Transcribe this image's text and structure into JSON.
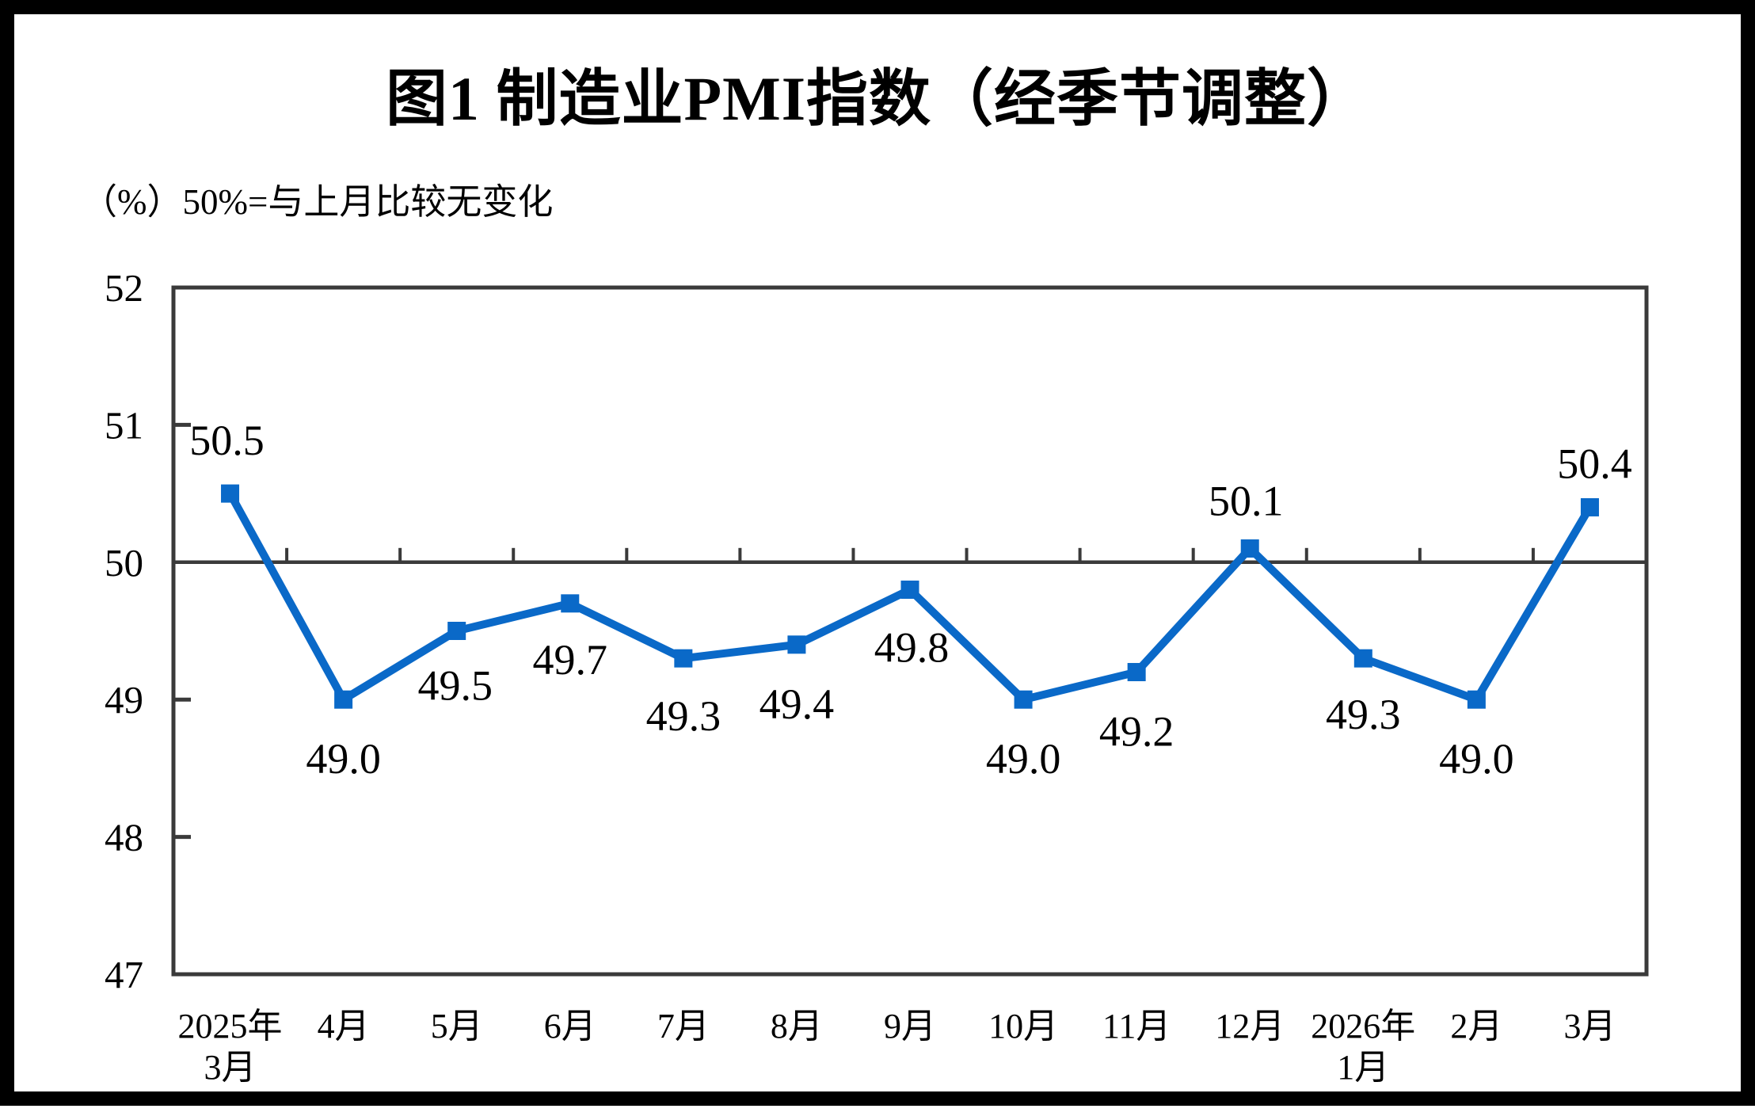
{
  "header": {
    "title": "图1  制造业PMI指数（经季节调整）",
    "subtitle": "（%）50%=与上月比较无变化"
  },
  "chart_data": {
    "type": "line",
    "title": "图1  制造业PMI指数（经季节调整）",
    "subtitle_note": "（%）50%=与上月比较无变化",
    "unit": "%",
    "categories": [
      [
        "2025年",
        "3月"
      ],
      [
        "4月"
      ],
      [
        "5月"
      ],
      [
        "6月"
      ],
      [
        "7月"
      ],
      [
        "8月"
      ],
      [
        "9月"
      ],
      [
        "10月"
      ],
      [
        "11月"
      ],
      [
        "12月"
      ],
      [
        "2026年",
        "1月"
      ],
      [
        "2月"
      ],
      [
        "3月"
      ]
    ],
    "series": [
      {
        "name": "制造业PMI",
        "values": [
          50.5,
          49.0,
          49.5,
          49.7,
          49.3,
          49.4,
          49.8,
          49.0,
          49.2,
          50.1,
          49.3,
          49.0,
          50.4
        ],
        "value_labels": [
          "50.5",
          "49.0",
          "49.5",
          "49.7",
          "49.3",
          "49.4",
          "49.8",
          "49.0",
          "49.2",
          "50.1",
          "49.3",
          "49.0",
          "50.4"
        ],
        "label_placements": [
          "above",
          "below",
          "below",
          "below",
          "below",
          "below",
          "below",
          "below",
          "below",
          "above",
          "below",
          "below",
          "above"
        ],
        "label_offsets": [
          [
            -4,
            -68
          ],
          [
            0,
            74
          ],
          [
            -2,
            68
          ],
          [
            0,
            70
          ],
          [
            0,
            72
          ],
          [
            0,
            74
          ],
          [
            2,
            72
          ],
          [
            0,
            74
          ],
          [
            0,
            74
          ],
          [
            -5,
            -61
          ],
          [
            0,
            70
          ],
          [
            0,
            74
          ],
          [
            6,
            -56
          ]
        ]
      }
    ],
    "xlabel": "",
    "ylabel": "",
    "ylim": [
      47,
      52
    ],
    "yticks": [
      47,
      48,
      49,
      50,
      51,
      52
    ],
    "ytick_step": 1,
    "reference_value": 50,
    "grid": "off",
    "legend": "none",
    "marker": "square",
    "colors": {
      "line": "#0a69c8",
      "axis": "#3a3a3a",
      "text": "#000000",
      "background": "#ffffff",
      "frame": "#000000"
    }
  }
}
